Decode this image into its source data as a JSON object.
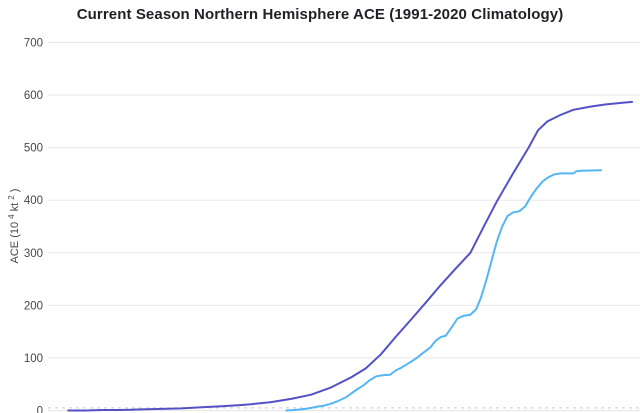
{
  "page": {
    "background": "#ffffff"
  },
  "chart_data": {
    "type": "line",
    "title": "Current Season Northern Hemisphere ACE (1991-2020 Climatology)",
    "xlabel": "",
    "ylabel": "ACE (10⁴kt²)",
    "ylabel_parts": {
      "pre": "ACE (10",
      "sup1": "4",
      "mid": "kt",
      "sup2": "2",
      "post": ")"
    },
    "ylim": [
      0,
      700
    ],
    "yticks": [
      0,
      100,
      200,
      300,
      400,
      500,
      600,
      700
    ],
    "grid": "horizontal-only",
    "legend_position": "none",
    "x_axis_labels_visible": false,
    "x_units": "percent of plot width (x tick labels are cut off in the screenshot)",
    "colors": {
      "climatology_line": "#5351c5",
      "current_season_line": "#54b6f4",
      "gridline": "#e8e8ea",
      "tick_text": "#474747",
      "title_text": "#1f2126",
      "dashed_baseline": "#c9c9c9"
    },
    "dashed_baseline_value": 5,
    "series": [
      {
        "id": "climatology",
        "color": "#5351c5",
        "points": [
          [
            3.1,
            0
          ],
          [
            6,
            0
          ],
          [
            9,
            1
          ],
          [
            12,
            1
          ],
          [
            15.6,
            2
          ],
          [
            19,
            3
          ],
          [
            22.4,
            4
          ],
          [
            25.8,
            6
          ],
          [
            29.2,
            8
          ],
          [
            32,
            10
          ],
          [
            34.2,
            12
          ],
          [
            37.6,
            16
          ],
          [
            41,
            22
          ],
          [
            44.4,
            30
          ],
          [
            47.8,
            44
          ],
          [
            51.2,
            63
          ],
          [
            53.7,
            80
          ],
          [
            56.3,
            107
          ],
          [
            58.8,
            140
          ],
          [
            61.4,
            173
          ],
          [
            63.9,
            205
          ],
          [
            66.4,
            238
          ],
          [
            69,
            270
          ],
          [
            71.5,
            300
          ],
          [
            74,
            355
          ],
          [
            76.1,
            400
          ],
          [
            78.7,
            450
          ],
          [
            81.4,
            500
          ],
          [
            83,
            533
          ],
          [
            84.6,
            550
          ],
          [
            86.8,
            562
          ],
          [
            89,
            572
          ],
          [
            91.9,
            578
          ],
          [
            94.4,
            582
          ],
          [
            96.9,
            585
          ],
          [
            99,
            587
          ]
        ]
      },
      {
        "id": "current_season",
        "color": "#54b6f4",
        "points": [
          [
            40.2,
            0
          ],
          [
            41.5,
            1
          ],
          [
            42.7,
            2
          ],
          [
            44,
            4
          ],
          [
            45.3,
            7
          ],
          [
            46.5,
            9
          ],
          [
            47.8,
            13
          ],
          [
            49,
            18
          ],
          [
            50.3,
            25
          ],
          [
            51.3,
            33
          ],
          [
            52.2,
            40
          ],
          [
            53.2,
            47
          ],
          [
            54.3,
            57
          ],
          [
            55.5,
            65
          ],
          [
            56.5,
            67
          ],
          [
            57.8,
            68
          ],
          [
            58.8,
            76
          ],
          [
            59.7,
            81
          ],
          [
            61,
            90
          ],
          [
            62.4,
            100
          ],
          [
            63.5,
            110
          ],
          [
            64.7,
            120
          ],
          [
            65.6,
            133
          ],
          [
            66.5,
            140
          ],
          [
            67.3,
            142
          ],
          [
            68.3,
            158
          ],
          [
            69.3,
            175
          ],
          [
            70.3,
            180
          ],
          [
            71.5,
            182
          ],
          [
            72.5,
            193
          ],
          [
            73.3,
            215
          ],
          [
            74.2,
            248
          ],
          [
            75.1,
            285
          ],
          [
            76,
            322
          ],
          [
            76.9,
            350
          ],
          [
            77.8,
            370
          ],
          [
            78.8,
            377
          ],
          [
            79.8,
            379
          ],
          [
            80.8,
            388
          ],
          [
            81.8,
            407
          ],
          [
            82.8,
            423
          ],
          [
            83.8,
            436
          ],
          [
            84.8,
            444
          ],
          [
            85.7,
            449
          ],
          [
            86.8,
            451
          ],
          [
            89,
            451
          ],
          [
            89.5,
            455
          ],
          [
            90.3,
            456
          ],
          [
            93.7,
            457
          ]
        ]
      }
    ]
  }
}
